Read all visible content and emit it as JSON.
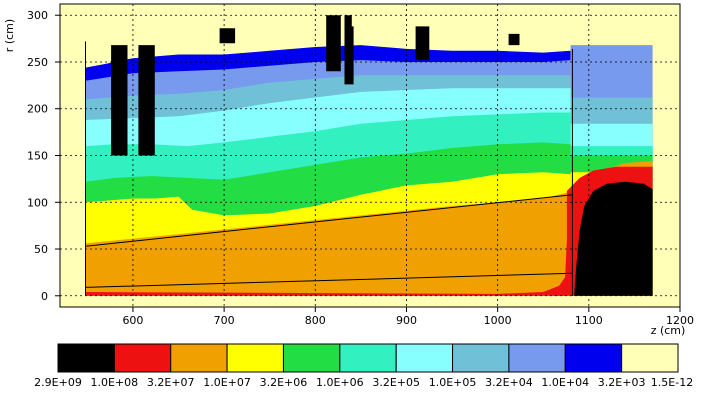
{
  "chart_data": {
    "type": "heatmap",
    "title": "",
    "xlabel": "z (cm)",
    "ylabel": "r (cm)",
    "xlim": [
      520,
      1200
    ],
    "ylim": [
      -12,
      312
    ],
    "x_ticks": [
      "600",
      "700",
      "800",
      "900",
      "1000",
      "1100",
      "1200"
    ],
    "y_ticks": [
      "0",
      "50",
      "100",
      "150",
      "200",
      "250",
      "300"
    ],
    "grid": true,
    "colorbar": {
      "orientation": "horizontal",
      "placement": "bottom",
      "colors": [
        "#000000",
        "#ee1111",
        "#f0a000",
        "#ffff00",
        "#22dd44",
        "#33f0c0",
        "#88ffff",
        "#70c0d8",
        "#7799ee",
        "#0000ee",
        "#ffffb8"
      ],
      "labels": [
        "2.9E+09",
        "1.0E+08",
        "3.2E+07",
        "1.0E+07",
        "3.2E+06",
        "1.0E+06",
        "3.2E+05",
        "1.0E+05",
        "3.2E+04",
        "1.0E+04",
        "3.2E+03",
        "1.5E-12"
      ]
    },
    "regions": [
      {
        "level": 10,
        "points": [
          [
            520,
            312
          ],
          [
            1200,
            312
          ],
          [
            1200,
            -12
          ],
          [
            520,
            -12
          ]
        ]
      },
      {
        "level": 10,
        "points": [
          [
            548,
            272
          ],
          [
            1170,
            272
          ],
          [
            1170,
            0
          ],
          [
            548,
            0
          ]
        ]
      },
      {
        "level": 9,
        "points": [
          [
            548,
            244
          ],
          [
            570,
            248
          ],
          [
            600,
            254
          ],
          [
            650,
            258
          ],
          [
            700,
            258
          ],
          [
            750,
            262
          ],
          [
            800,
            266
          ],
          [
            850,
            268
          ],
          [
            900,
            264
          ],
          [
            950,
            262
          ],
          [
            1000,
            262
          ],
          [
            1050,
            260
          ],
          [
            1080,
            262
          ],
          [
            1080,
            0
          ],
          [
            548,
            0
          ]
        ]
      },
      {
        "level": 8,
        "points": [
          [
            548,
            230
          ],
          [
            600,
            238
          ],
          [
            650,
            240
          ],
          [
            700,
            242
          ],
          [
            750,
            246
          ],
          [
            800,
            250
          ],
          [
            850,
            252
          ],
          [
            900,
            250
          ],
          [
            950,
            250
          ],
          [
            1000,
            250
          ],
          [
            1050,
            250
          ],
          [
            1080,
            252
          ],
          [
            1080,
            0
          ],
          [
            548,
            0
          ]
        ]
      },
      {
        "level": 8,
        "points": [
          [
            1080,
            268
          ],
          [
            1170,
            268
          ],
          [
            1170,
            0
          ],
          [
            1080,
            0
          ]
        ]
      },
      {
        "level": 7,
        "points": [
          [
            548,
            210
          ],
          [
            600,
            214
          ],
          [
            650,
            216
          ],
          [
            700,
            220
          ],
          [
            750,
            228
          ],
          [
            800,
            232
          ],
          [
            850,
            236
          ],
          [
            900,
            236
          ],
          [
            950,
            236
          ],
          [
            1000,
            236
          ],
          [
            1050,
            236
          ],
          [
            1080,
            236
          ],
          [
            1080,
            0
          ],
          [
            548,
            0
          ]
        ]
      },
      {
        "level": 7,
        "points": [
          [
            1080,
            212
          ],
          [
            1170,
            212
          ],
          [
            1170,
            0
          ],
          [
            1080,
            0
          ]
        ]
      },
      {
        "level": 6,
        "points": [
          [
            548,
            188
          ],
          [
            600,
            190
          ],
          [
            650,
            192
          ],
          [
            700,
            198
          ],
          [
            750,
            206
          ],
          [
            800,
            212
          ],
          [
            850,
            218
          ],
          [
            900,
            220
          ],
          [
            950,
            222
          ],
          [
            1000,
            222
          ],
          [
            1050,
            222
          ],
          [
            1080,
            222
          ],
          [
            1080,
            0
          ],
          [
            548,
            0
          ]
        ]
      },
      {
        "level": 6,
        "points": [
          [
            1080,
            184
          ],
          [
            1170,
            184
          ],
          [
            1170,
            0
          ],
          [
            1080,
            0
          ]
        ]
      },
      {
        "level": 5,
        "points": [
          [
            548,
            160
          ],
          [
            580,
            162
          ],
          [
            620,
            162
          ],
          [
            660,
            160
          ],
          [
            700,
            164
          ],
          [
            750,
            170
          ],
          [
            800,
            176
          ],
          [
            850,
            184
          ],
          [
            900,
            188
          ],
          [
            950,
            192
          ],
          [
            1000,
            194
          ],
          [
            1050,
            196
          ],
          [
            1080,
            196
          ],
          [
            1080,
            0
          ],
          [
            548,
            0
          ]
        ]
      },
      {
        "level": 5,
        "points": [
          [
            1080,
            160
          ],
          [
            1170,
            160
          ],
          [
            1170,
            0
          ],
          [
            1080,
            0
          ]
        ]
      },
      {
        "level": 4,
        "points": [
          [
            548,
            122
          ],
          [
            580,
            126
          ],
          [
            620,
            128
          ],
          [
            660,
            126
          ],
          [
            700,
            124
          ],
          [
            750,
            132
          ],
          [
            800,
            140
          ],
          [
            850,
            148
          ],
          [
            900,
            152
          ],
          [
            950,
            158
          ],
          [
            1000,
            162
          ],
          [
            1050,
            164
          ],
          [
            1080,
            162
          ],
          [
            1080,
            0
          ],
          [
            548,
            0
          ]
        ]
      },
      {
        "level": 4,
        "points": [
          [
            1080,
            150
          ],
          [
            1170,
            150
          ],
          [
            1170,
            0
          ],
          [
            1080,
            0
          ]
        ]
      },
      {
        "level": 3,
        "points": [
          [
            548,
            100
          ],
          [
            575,
            102
          ],
          [
            600,
            104
          ],
          [
            625,
            104
          ],
          [
            650,
            106
          ],
          [
            665,
            92
          ],
          [
            700,
            86
          ],
          [
            750,
            88
          ],
          [
            800,
            96
          ],
          [
            850,
            108
          ],
          [
            900,
            118
          ],
          [
            950,
            122
          ],
          [
            1000,
            130
          ],
          [
            1050,
            132
          ],
          [
            1080,
            130
          ],
          [
            1080,
            0
          ],
          [
            548,
            0
          ]
        ]
      },
      {
        "level": 3,
        "points": [
          [
            1080,
            132
          ],
          [
            1170,
            132
          ],
          [
            1170,
            0
          ],
          [
            1080,
            0
          ]
        ]
      },
      {
        "level": 2,
        "points": [
          [
            548,
            56
          ],
          [
            650,
            66
          ],
          [
            750,
            76
          ],
          [
            850,
            86
          ],
          [
            950,
            96
          ],
          [
            1050,
            104
          ],
          [
            1083,
            112
          ],
          [
            1100,
            124
          ],
          [
            1120,
            136
          ],
          [
            1140,
            142
          ],
          [
            1170,
            144
          ],
          [
            1170,
            0
          ],
          [
            548,
            0
          ]
        ]
      },
      {
        "level": 1,
        "points": [
          [
            1076,
            112
          ],
          [
            1090,
            126
          ],
          [
            1105,
            134
          ],
          [
            1130,
            138
          ],
          [
            1170,
            138
          ],
          [
            1170,
            0
          ],
          [
            1060,
            0
          ],
          [
            1074,
            20
          ],
          [
            1076,
            60
          ]
        ]
      },
      {
        "level": 1,
        "points": [
          [
            548,
            4
          ],
          [
            1000,
            2
          ],
          [
            1050,
            4
          ],
          [
            1076,
            14
          ],
          [
            1076,
            0
          ],
          [
            548,
            0
          ]
        ]
      },
      {
        "level": 0,
        "points": [
          [
            1090,
            70
          ],
          [
            1095,
            96
          ],
          [
            1105,
            112
          ],
          [
            1120,
            120
          ],
          [
            1140,
            122
          ],
          [
            1160,
            120
          ],
          [
            1170,
            114
          ],
          [
            1170,
            0
          ],
          [
            1084,
            0
          ],
          [
            1086,
            30
          ]
        ]
      },
      {
        "level": 0,
        "points": [
          [
            576,
            150
          ],
          [
            594,
            150
          ],
          [
            594,
            268
          ],
          [
            576,
            268
          ]
        ]
      },
      {
        "level": 0,
        "points": [
          [
            606,
            150
          ],
          [
            624,
            150
          ],
          [
            624,
            268
          ],
          [
            606,
            268
          ]
        ]
      },
      {
        "level": 0,
        "points": [
          [
            695,
            270
          ],
          [
            712,
            270
          ],
          [
            712,
            300
          ],
          [
            695,
            300
          ]
        ]
      },
      {
        "level": 0,
        "points": [
          [
            812,
            240
          ],
          [
            828,
            240
          ],
          [
            828,
            300
          ],
          [
            812,
            300
          ]
        ]
      },
      {
        "level": 0,
        "points": [
          [
            832,
            226
          ],
          [
            842,
            226
          ],
          [
            842,
            300
          ],
          [
            832,
            300
          ]
        ]
      },
      {
        "level": 0,
        "points": [
          [
            910,
            252
          ],
          [
            925,
            252
          ],
          [
            925,
            300
          ],
          [
            910,
            300
          ]
        ]
      },
      {
        "level": 0,
        "points": [
          [
            1012,
            268
          ],
          [
            1024,
            268
          ],
          [
            1024,
            300
          ],
          [
            1012,
            300
          ]
        ]
      },
      {
        "level": 10,
        "points": [
          [
            675,
            286
          ],
          [
            808,
            286
          ],
          [
            808,
            312
          ],
          [
            675,
            312
          ]
        ]
      },
      {
        "level": 10,
        "points": [
          [
            840,
            288
          ],
          [
            960,
            288
          ],
          [
            960,
            312
          ],
          [
            840,
            312
          ]
        ]
      },
      {
        "level": 10,
        "points": [
          [
            1000,
            280
          ],
          [
            1060,
            280
          ],
          [
            1060,
            312
          ],
          [
            1000,
            312
          ]
        ]
      }
    ],
    "outlines": [
      [
        [
          548,
          53
        ],
        [
          1082,
          108
        ]
      ],
      [
        [
          548,
          9
        ],
        [
          1082,
          24
        ]
      ],
      [
        [
          548,
          272
        ],
        [
          548,
          0
        ]
      ],
      [
        [
          1082,
          264
        ],
        [
          1082,
          0
        ]
      ]
    ]
  }
}
